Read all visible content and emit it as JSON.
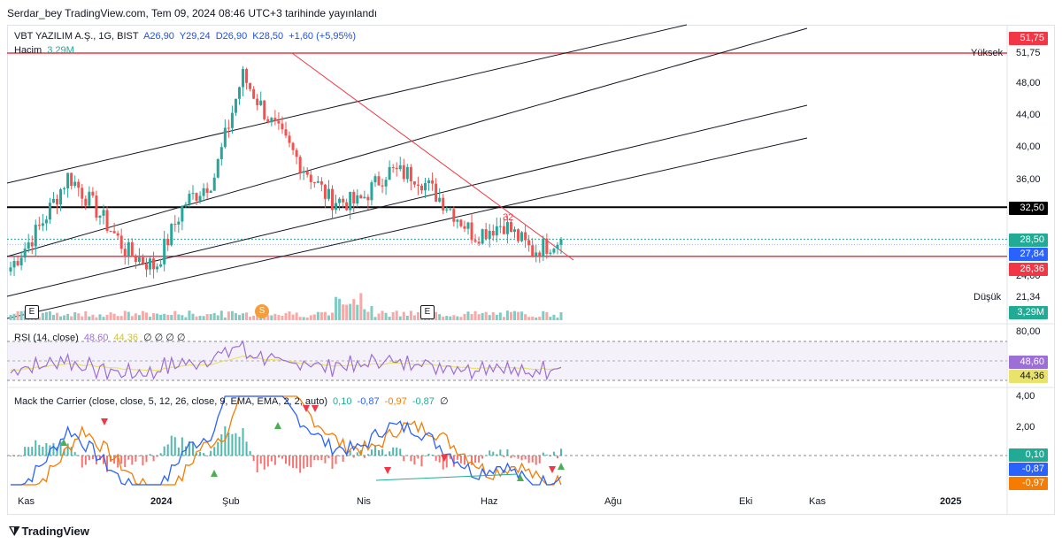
{
  "header": {
    "published": "Serdar_bey TradingView.com, Tem 09, 2024 08:46 UTC+3 tarihinde yayınlandı"
  },
  "main_legend": {
    "symbol": "VBT YAZILIM A.Ş., 1G, BIST",
    "open": "A26,90",
    "high": "Y29,24",
    "low": "D26,90",
    "close": "K28,50",
    "change": "+1,60 (+5,95%)",
    "volume_label": "Hacim",
    "volume_value": "3,29M"
  },
  "rsi_legend": {
    "name": "RSI (14, close)",
    "v1": "48,60",
    "v2": "44,36",
    "tail": "∅ ∅ ∅ ∅"
  },
  "macd_legend": {
    "name": "Mack the Carrier (close, close, 5, 12, 26, close, 9, EMA, EMA, 2, 2, auto)",
    "v1": "0,10",
    "v2": "-0,87",
    "v3": "-0,97",
    "v4": "-0,87",
    "tail": "∅"
  },
  "price_axis": [
    "48,00",
    "44,00",
    "40,00",
    "36,00",
    "24,00"
  ],
  "price_tags": {
    "high_tag": "51,75",
    "high_label": "Yüksek",
    "high_value": "51,75",
    "level_tag": "32,50",
    "last_tag": "28,50",
    "blue_tag": "27,84",
    "red_tag": "26,36",
    "low_label": "Düşük",
    "low_value": "21,34",
    "vol_tag": "3,29M"
  },
  "rsi_axis": {
    "top": "80,00",
    "tag1": "48,60",
    "tag2": "44,36"
  },
  "macd_axis": {
    "t4": "4,00",
    "t2": "2,00",
    "tag1": "0,10",
    "tag2": "-0,87",
    "tag3": "-0,97"
  },
  "x_axis": [
    {
      "label": "Kas",
      "bold": false
    },
    {
      "label": "2024",
      "bold": true
    },
    {
      "label": "Şub",
      "bold": false
    },
    {
      "label": "Nis",
      "bold": false
    },
    {
      "label": "Haz",
      "bold": false
    },
    {
      "label": "Ağu",
      "bold": false
    },
    {
      "label": "Eki",
      "bold": false
    },
    {
      "label": "Kas",
      "bold": false
    },
    {
      "label": "2025",
      "bold": true
    }
  ],
  "annotations": {
    "trend_count": "32",
    "earnings_1": "E",
    "earnings_2": "E",
    "split": "S"
  },
  "brand": "TradingView",
  "colors": {
    "up": "#26a69a",
    "down": "#ef5350",
    "high_line": "#f23645",
    "level_line": "#000000",
    "rsi": "#9c6fd6",
    "rsi_ma": "#e9e36b",
    "macd_blue": "#2962ff",
    "macd_orange": "#f57c00",
    "last": "#22ab94",
    "blue_tag": "#2962ff"
  },
  "chart_data": [
    {
      "type": "candlestick",
      "title": "VBT YAZILIM A.Ş., 1G, BIST",
      "x_range": [
        "Kas 2023",
        "Haz 2024"
      ],
      "ylim": [
        21.34,
        51.75
      ],
      "ohlc_last": {
        "open": 26.9,
        "high": 29.24,
        "low": 26.9,
        "close": 28.5
      },
      "approx_close_path": [
        {
          "t": "Kas",
          "c": 25.0
        },
        {
          "t": "Ara-a",
          "c": 30.0
        },
        {
          "t": "Ara-b",
          "c": 36.5
        },
        {
          "t": "Ara-c",
          "c": 32.0
        },
        {
          "t": "2024",
          "c": 27.0
        },
        {
          "t": "Oca",
          "c": 25.0
        },
        {
          "t": "Şub-a",
          "c": 33.0
        },
        {
          "t": "Şub-b",
          "c": 36.0
        },
        {
          "t": "Şub-c",
          "c": 49.0
        },
        {
          "t": "Mar-a",
          "c": 43.0
        },
        {
          "t": "Mar-b",
          "c": 38.0
        },
        {
          "t": "Mar-c",
          "c": 33.5
        },
        {
          "t": "Nis",
          "c": 33.0
        },
        {
          "t": "Nis-b",
          "c": 37.0
        },
        {
          "t": "May-a",
          "c": 36.5
        },
        {
          "t": "May-b",
          "c": 33.0
        },
        {
          "t": "May-c",
          "c": 29.0
        },
        {
          "t": "Haz",
          "c": 30.5
        },
        {
          "t": "Haz-b",
          "c": 27.0
        },
        {
          "t": "Tem",
          "c": 28.5
        }
      ],
      "levels": {
        "high": 51.75,
        "horizontal": 32.5,
        "support": 26.36,
        "low": 21.34
      }
    },
    {
      "type": "line",
      "title": "RSI (14, close)",
      "series": [
        {
          "name": "RSI",
          "last": 48.6
        },
        {
          "name": "RSI MA",
          "last": 44.36
        }
      ]
    },
    {
      "type": "bar",
      "title": "Mack the Carrier",
      "series": [
        {
          "name": "hist",
          "last": 0.1
        },
        {
          "name": "macd",
          "last": -0.87
        },
        {
          "name": "signal",
          "last": -0.97
        }
      ]
    }
  ]
}
